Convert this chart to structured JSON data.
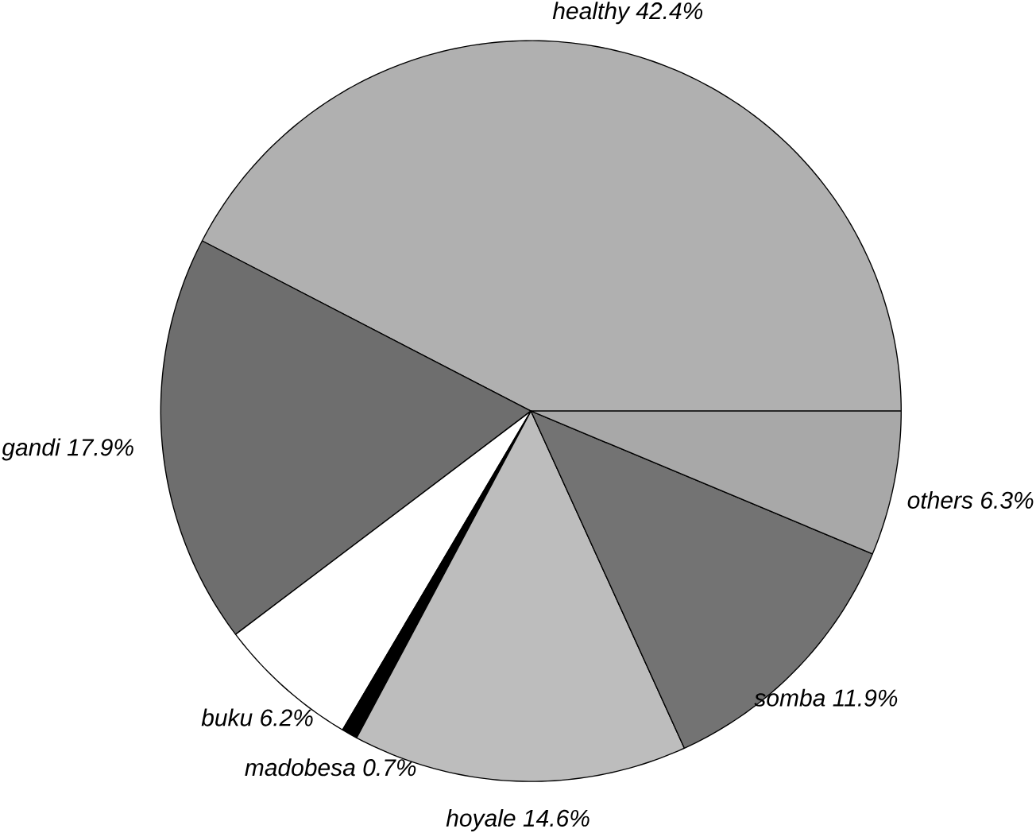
{
  "chart_data": {
    "type": "pie",
    "categories": [
      "healthy",
      "gandi",
      "buku",
      "madobesa",
      "hoyale",
      "somba",
      "others"
    ],
    "values": [
      42.4,
      17.9,
      6.2,
      0.7,
      14.6,
      11.9,
      6.3
    ],
    "value_labels": [
      "42.4%",
      "17.9%",
      "6.2%",
      "0.7%",
      "14.6%",
      "11.9%",
      "6.3%"
    ],
    "colors": [
      "#b0b0b0",
      "#6e6e6e",
      "#ffffff",
      "#000000",
      "#bdbdbd",
      "#737373",
      "#a8a8a8"
    ]
  }
}
